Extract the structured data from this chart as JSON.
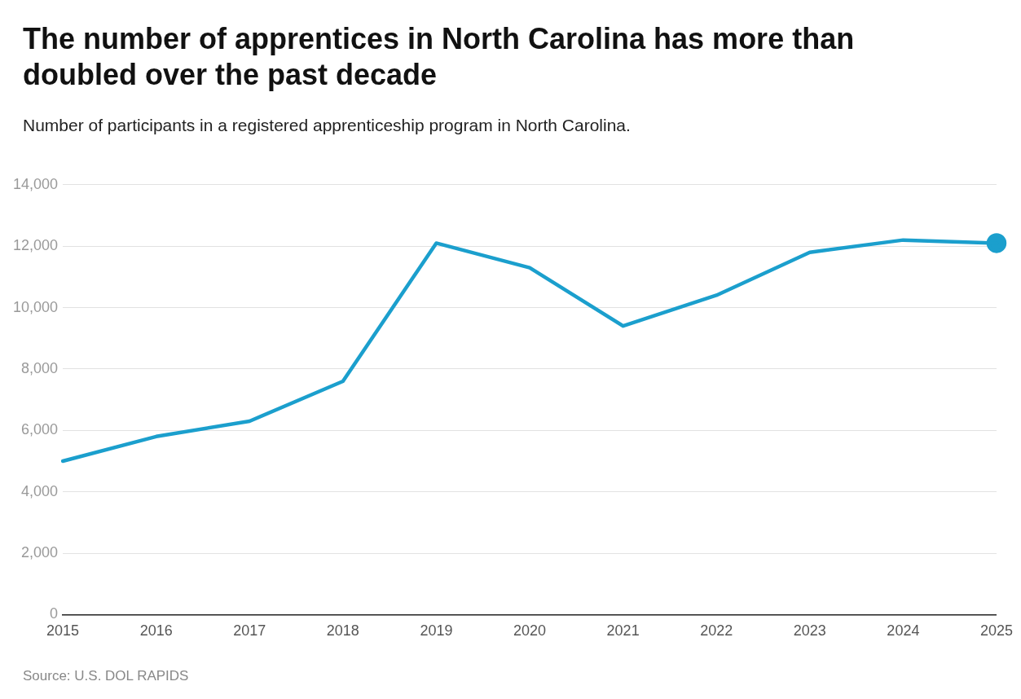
{
  "chart_data": {
    "type": "line",
    "title": "The number of apprentices in North Carolina has more than doubled over the past decade",
    "subtitle": "Number of participants in a registered apprenticeship program in North Carolina.",
    "categories": [
      "2015",
      "2016",
      "2017",
      "2018",
      "2019",
      "2020",
      "2021",
      "2022",
      "2023",
      "2024",
      "2025"
    ],
    "series": [
      {
        "color": "#1b9fcd",
        "values": [
          5000,
          5800,
          6300,
          7600,
          12100,
          11300,
          9400,
          10400,
          11800,
          12200,
          12100
        ]
      },
      {
        "type": "scatter",
        "color": "#1b9fcd",
        "values": [
          null,
          null,
          null,
          null,
          null,
          null,
          null,
          null,
          null,
          null,
          12100
        ]
      }
    ],
    "ylim": [
      0,
      14000
    ],
    "yticks": [
      0,
      {
        "value": 2000,
        "label": "2,000"
      },
      {
        "value": 4000,
        "label": "4,000"
      },
      {
        "value": 6000,
        "label": "6,000"
      },
      {
        "value": 8000,
        "label": "8,000"
      },
      {
        "value": 10000,
        "label": "10,000"
      },
      {
        "value": 12000,
        "label": "12,000"
      },
      {
        "value": 14000,
        "label": "14,000"
      }
    ],
    "grid": "y",
    "line_style": "solid",
    "legend": false,
    "annotations": [
      "Source: U.S. DOL RAPIDS"
    ]
  }
}
